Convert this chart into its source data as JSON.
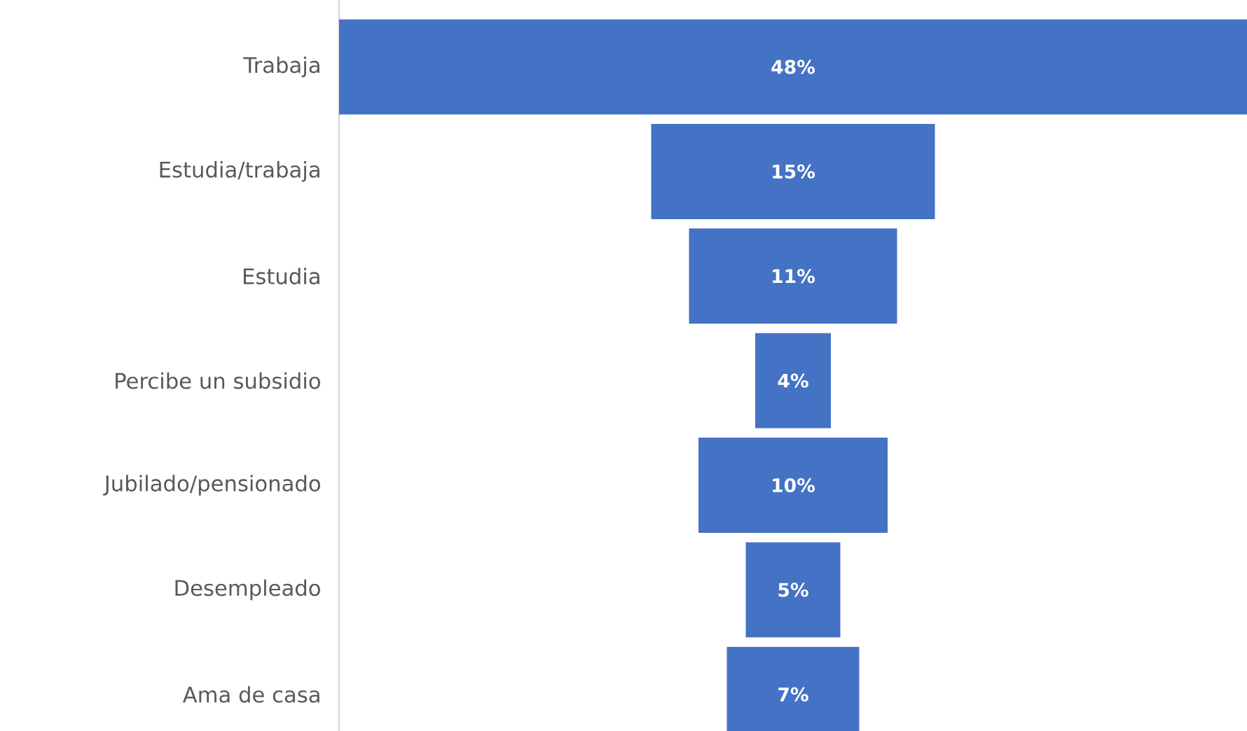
{
  "chart_data": {
    "type": "other",
    "categories": [
      "Trabaja",
      "Estudia/trabaja",
      "Estudia",
      "Percibe un subsidio",
      "Jubilado/pensionado",
      "Desempleado",
      "Ama de casa"
    ],
    "values": [
      48,
      15,
      11,
      4,
      10,
      5,
      7
    ],
    "value_labels": [
      "48%",
      "15%",
      "11%",
      "4%",
      "10%",
      "5%",
      "7%"
    ],
    "color": "#4472c4"
  }
}
